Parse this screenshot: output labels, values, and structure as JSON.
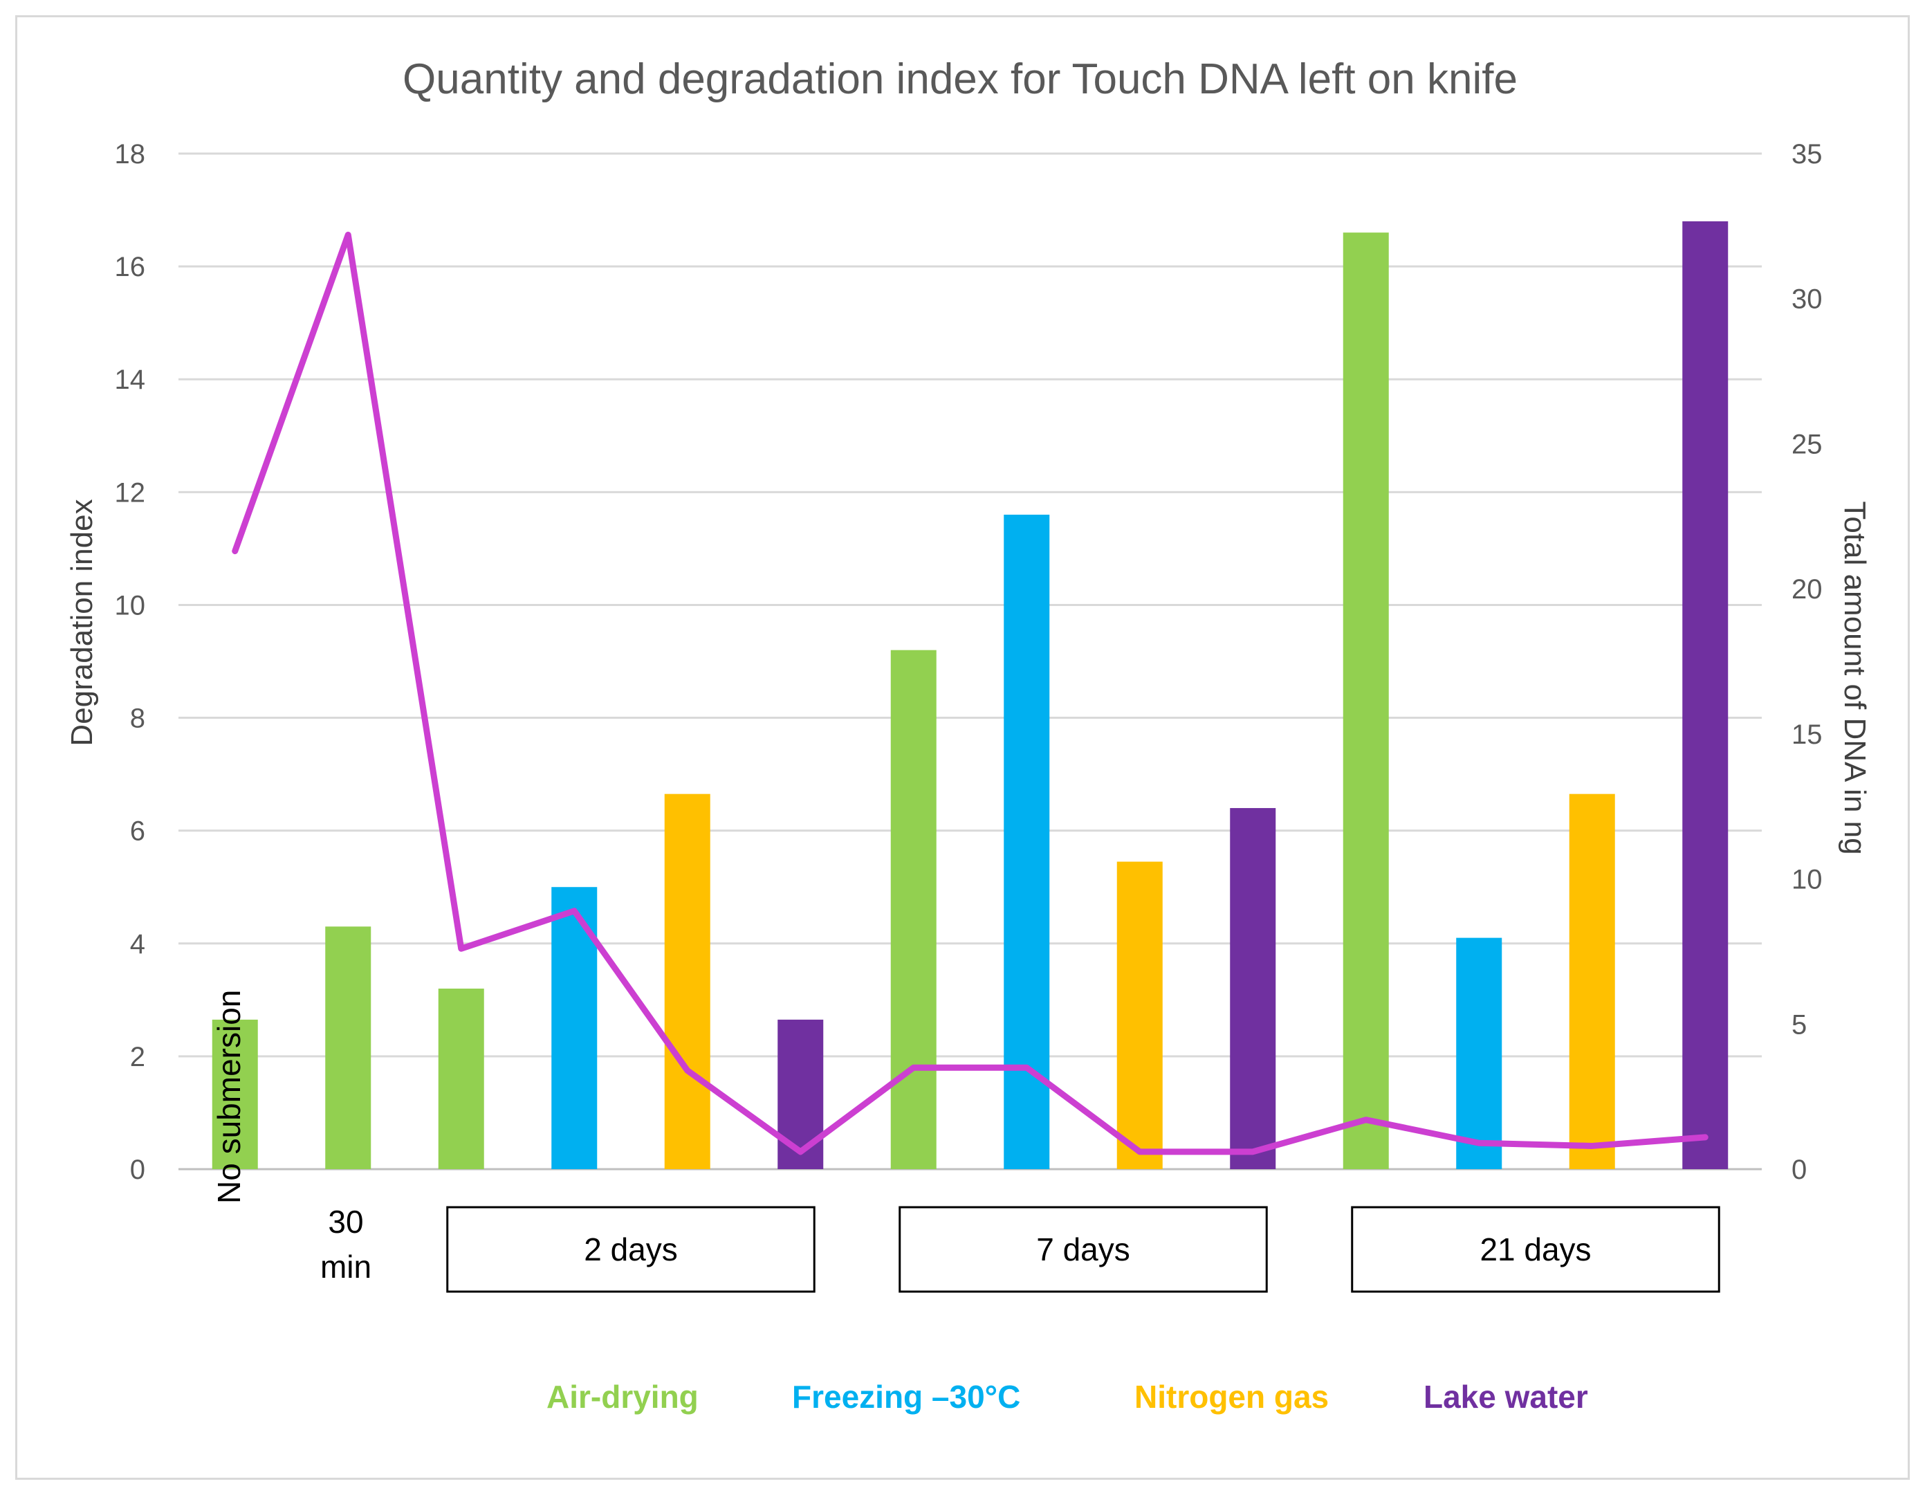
{
  "chart_data": {
    "type": "bar",
    "title": "Quantity and degradation index for Touch DNA left on knife",
    "ylabel": "Degradation index",
    "y2label": "Total amount of DNA in ng",
    "ylim": [
      0,
      18
    ],
    "y2lim": [
      0,
      35
    ],
    "yticks": [
      "0",
      "2",
      "4",
      "6",
      "8",
      "10",
      "12",
      "14",
      "16",
      "18"
    ],
    "y2ticks": [
      "0",
      "5",
      "10",
      "15",
      "20",
      "25",
      "30",
      "35"
    ],
    "grid": true,
    "category_labels": {
      "no_submersion": "No submersion",
      "thirty_min_line1": "30",
      "thirty_min_line2": "min"
    },
    "groups": [
      "2 days",
      "7 days",
      "21 days"
    ],
    "legend": {
      "placement": "bottom",
      "items": [
        {
          "label": "Air-drying",
          "color": "#92d050"
        },
        {
          "label": "Freezing –30°C",
          "color": "#00b0f0"
        },
        {
          "label": "Nitrogen gas",
          "color": "#ffc000"
        },
        {
          "label": "Lake water",
          "color": "#7030a0"
        }
      ]
    },
    "bars": [
      {
        "value": 2.65,
        "color": "#92d050"
      },
      {
        "value": 4.3,
        "color": "#92d050"
      },
      {
        "value": 3.2,
        "color": "#92d050"
      },
      {
        "value": 5.0,
        "color": "#00b0f0"
      },
      {
        "value": 6.65,
        "color": "#ffc000"
      },
      {
        "value": 2.65,
        "color": "#7030a0"
      },
      {
        "value": 9.2,
        "color": "#92d050"
      },
      {
        "value": 11.6,
        "color": "#00b0f0"
      },
      {
        "value": 5.45,
        "color": "#ffc000"
      },
      {
        "value": 6.4,
        "color": "#7030a0"
      },
      {
        "value": 16.6,
        "color": "#92d050"
      },
      {
        "value": 4.1,
        "color": "#00b0f0"
      },
      {
        "value": 6.65,
        "color": "#ffc000"
      },
      {
        "value": 16.8,
        "color": "#7030a0"
      }
    ],
    "line": {
      "axis": "secondary",
      "color": "#cc3fd1",
      "values": [
        21.3,
        32.2,
        7.6,
        8.9,
        3.4,
        0.6,
        3.5,
        3.5,
        0.6,
        0.6,
        1.7,
        0.9,
        0.8,
        1.1
      ]
    }
  }
}
